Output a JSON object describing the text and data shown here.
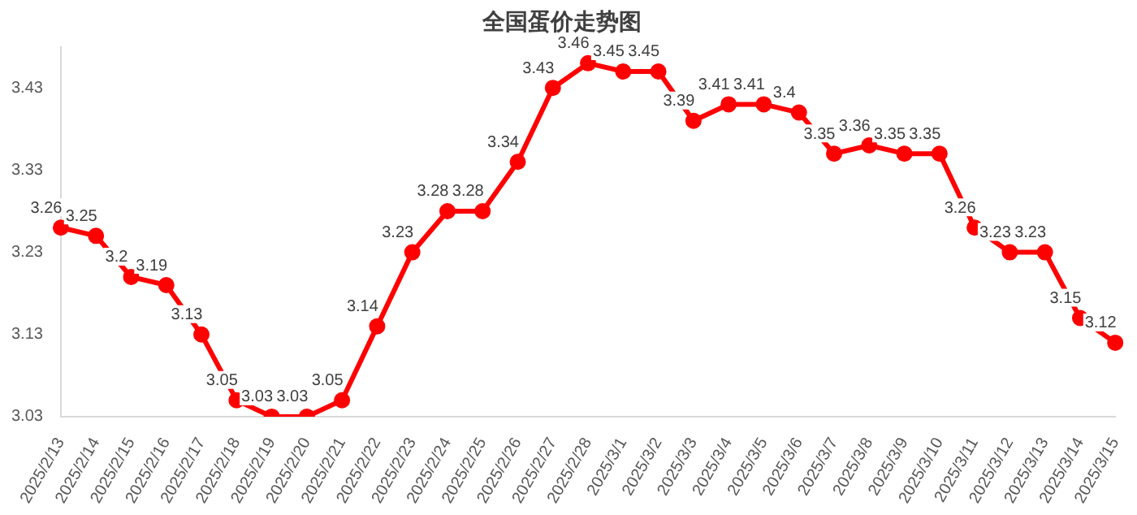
{
  "chart_data": {
    "type": "line",
    "title": "全国蛋价走势图",
    "categories": [
      "2025/2/13",
      "2025/2/14",
      "2025/2/15",
      "2025/2/16",
      "2025/2/17",
      "2025/2/18",
      "2025/2/19",
      "2025/2/20",
      "2025/2/21",
      "2025/2/22",
      "2025/2/23",
      "2025/2/24",
      "2025/2/25",
      "2025/2/26",
      "2025/2/27",
      "2025/2/28",
      "2025/3/1",
      "2025/3/2",
      "2025/3/3",
      "2025/3/4",
      "2025/3/5",
      "2025/3/6",
      "2025/3/7",
      "2025/3/8",
      "2025/3/9",
      "2025/3/10",
      "2025/3/11",
      "2025/3/12",
      "2025/3/13",
      "2025/3/14",
      "2025/3/15"
    ],
    "series": [
      {
        "color": "#ff0000",
        "values": [
          3.26,
          3.25,
          3.2,
          3.19,
          3.13,
          3.05,
          3.03,
          3.03,
          3.05,
          3.14,
          3.23,
          3.28,
          3.28,
          3.34,
          3.43,
          3.46,
          3.45,
          3.45,
          3.39,
          3.41,
          3.41,
          3.4,
          3.35,
          3.36,
          3.35,
          3.35,
          3.26,
          3.23,
          3.23,
          3.15,
          3.12
        ]
      }
    ],
    "ylim": [
      3.03,
      3.48
    ],
    "yticks": [
      3.03,
      3.13,
      3.23,
      3.33,
      3.43
    ],
    "grid": false,
    "legend": false,
    "marker": "circle",
    "line_style": "solid",
    "data_labels": true
  }
}
